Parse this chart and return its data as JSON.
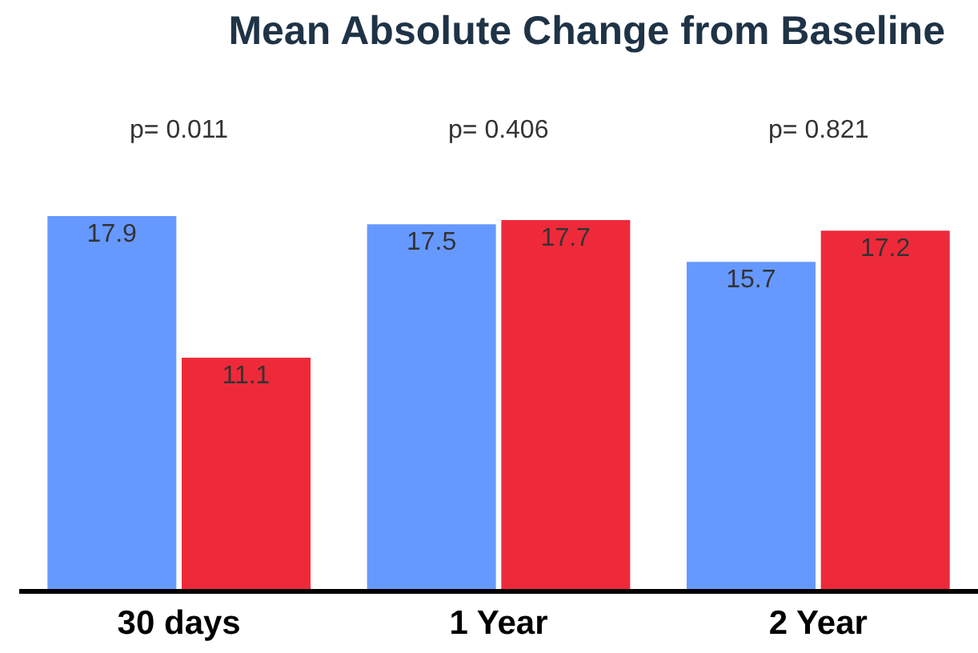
{
  "chart_data": {
    "type": "bar",
    "title": "Mean Absolute Change from Baseline",
    "categories": [
      "30 days",
      "1 Year",
      "2 Year"
    ],
    "series": [
      {
        "color": "#6699ff",
        "values": [
          17.9,
          17.5,
          15.7
        ]
      },
      {
        "color": "#ee2a3a",
        "values": [
          11.1,
          17.7,
          17.2
        ]
      }
    ],
    "data_labels": true,
    "annotations": [
      "p= 0.011",
      "p= 0.406",
      "p= 0.821"
    ]
  }
}
